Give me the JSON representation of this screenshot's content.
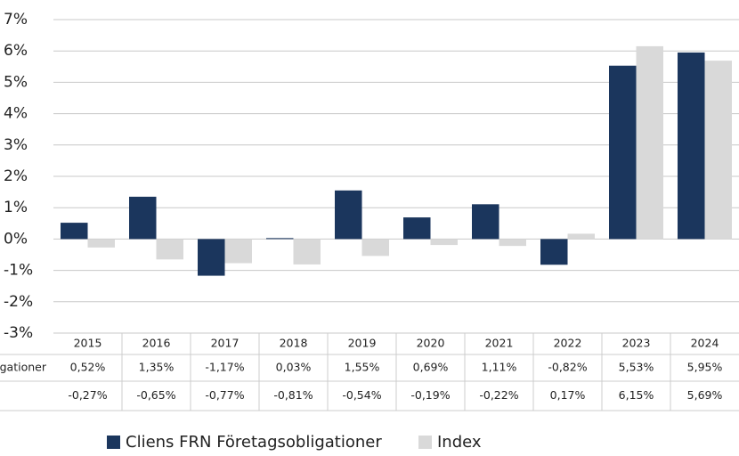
{
  "chart_data": {
    "type": "bar",
    "categories": [
      "2015",
      "2016",
      "2017",
      "2018",
      "2019",
      "2020",
      "2021",
      "2022",
      "2023",
      "2024"
    ],
    "series": [
      {
        "name": "Cliens FRN Företagsobligationer",
        "color": "#1b365d",
        "values": [
          0.52,
          1.35,
          -1.17,
          0.03,
          1.55,
          0.69,
          1.11,
          -0.82,
          5.53,
          5.95
        ],
        "value_labels": [
          "0,52%",
          "1,35%",
          "-1,17%",
          "0,03%",
          "1,55%",
          "0,69%",
          "1,11%",
          "-0,82%",
          "5,53%",
          "5,95%"
        ]
      },
      {
        "name": "Index",
        "color": "#d9d9d9",
        "values": [
          -0.27,
          -0.65,
          -0.77,
          -0.81,
          -0.54,
          -0.19,
          -0.22,
          0.17,
          6.15,
          5.69
        ],
        "value_labels": [
          "-0,27%",
          "-0,65%",
          "-0,77%",
          "-0,81%",
          "-0,54%",
          "-0,19%",
          "-0,22%",
          "0,17%",
          "6,15%",
          "5,69%"
        ]
      }
    ],
    "ylim": [
      -3,
      7
    ],
    "yticks": [
      {
        "value": -3,
        "label": "-3%"
      },
      {
        "value": -2,
        "label": "-2%"
      },
      {
        "value": -1,
        "label": "-1%"
      },
      {
        "value": 0,
        "label": "0%"
      },
      {
        "value": 1,
        "label": "1%"
      },
      {
        "value": 2,
        "label": "2%"
      },
      {
        "value": 3,
        "label": "3%"
      },
      {
        "value": 4,
        "label": "4%"
      },
      {
        "value": 5,
        "label": "5%"
      },
      {
        "value": 6,
        "label": "6%"
      },
      {
        "value": 7,
        "label": "7%"
      }
    ],
    "grid": true
  }
}
